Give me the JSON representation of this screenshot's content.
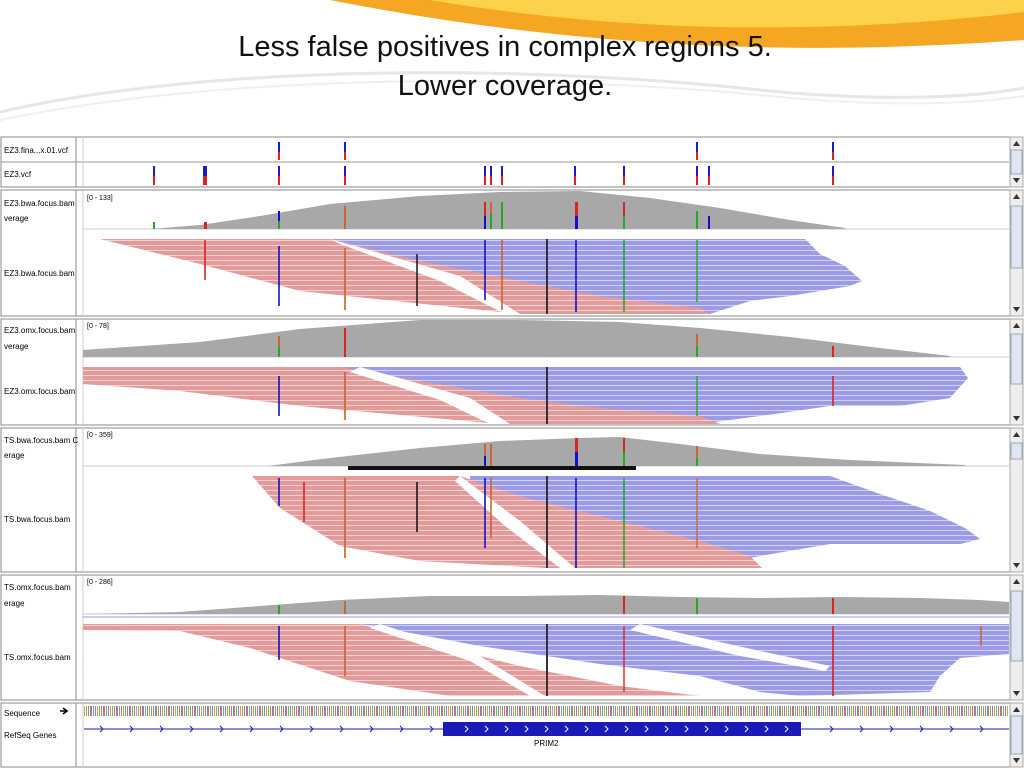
{
  "slide": {
    "title_line1": "Less false positives in complex regions 5.",
    "title_line2": "Lower coverage."
  },
  "tracks": {
    "vcf1": "EZ3.fina...x.01.vcf",
    "vcf2": "EZ3.vcf",
    "panels": [
      {
        "cov_label": "EZ3.bwa.focus.bam",
        "cov_label2": "verage",
        "range": "[0 - 133]",
        "reads_label": "EZ3.bwa.focus.bam"
      },
      {
        "cov_label": "EZ3.omx.focus.bam",
        "cov_label2": "verage",
        "range": "[0 - 78]",
        "reads_label": "EZ3.omx.focus.bam"
      },
      {
        "cov_label": "TS.bwa.focus.bam C",
        "cov_label2": "erage",
        "range": "[0 - 359]",
        "reads_label": "TS.bwa.focus.bam"
      },
      {
        "cov_label": "TS.omx.focus.bam",
        "cov_label2": "erage",
        "range": "[0 - 286]",
        "reads_label": "TS.omx.focus.bam"
      }
    ],
    "sequence_label": "Sequence",
    "genes_label": "RefSeq Genes",
    "gene_name": "PRIM2"
  },
  "colors": {
    "coverage": "#a8a8a8",
    "forward_read": "#e39a9a",
    "reverse_read": "#9b9be8",
    "gene": "#1a1ab8"
  },
  "icons": {
    "strand": "right-arrow-icon",
    "scroll_up": "triangle-up-icon",
    "scroll_down": "triangle-down-icon"
  }
}
